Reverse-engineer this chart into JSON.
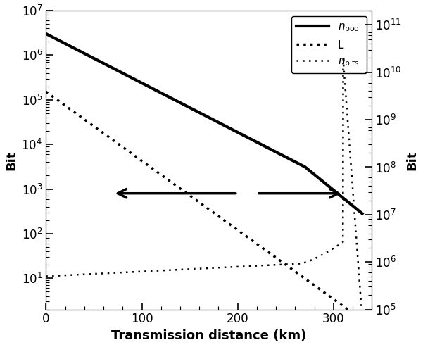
{
  "xlabel": "Transmission distance (km)",
  "ylabel_left": "Bit",
  "ylabel_right": "Bit",
  "xlim": [
    0,
    340
  ],
  "ylim_left": [
    2,
    10000000.0
  ],
  "ylim_right": [
    100000.0,
    200000000000.0
  ],
  "xticks": [
    0,
    100,
    200,
    300
  ],
  "background_color": "#ffffff"
}
